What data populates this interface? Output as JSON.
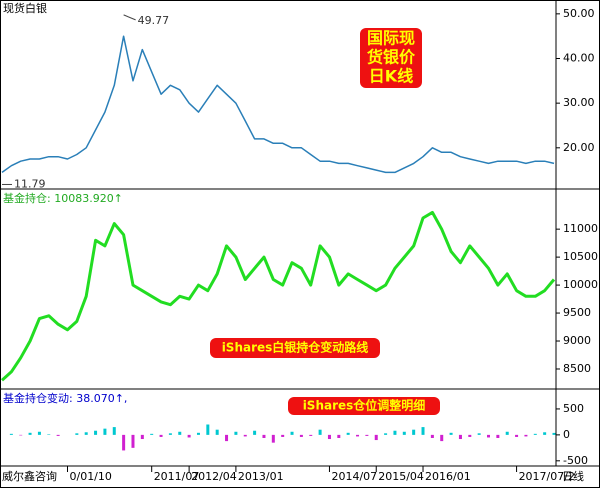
{
  "chart_data": [
    {
      "type": "line",
      "title": "现货白银",
      "color": "#2a7fb8",
      "values": [
        14.5,
        16,
        17,
        17.5,
        17.5,
        18,
        18,
        17.5,
        18.5,
        20,
        24,
        28,
        34,
        45,
        35,
        42,
        37,
        32,
        34,
        33,
        30,
        28,
        31,
        34,
        32,
        30,
        26,
        22,
        22,
        21,
        21,
        20,
        20,
        18.5,
        17,
        17,
        16.5,
        16.5,
        16,
        15.5,
        15,
        14.5,
        14.5,
        15.5,
        16.5,
        18,
        20,
        19,
        19,
        18,
        17.5,
        17,
        16.5,
        17,
        17,
        17,
        16.5,
        17,
        17,
        16.5
      ],
      "high": 49.77,
      "low": 11.79,
      "ylim": [
        11,
        53.1
      ],
      "yticks": [
        {
          "value": 50,
          "label": "50.00"
        },
        {
          "value": 40,
          "label": "40.00"
        },
        {
          "value": 30,
          "label": "30.00"
        },
        {
          "value": 20,
          "label": "20.00"
        }
      ],
      "note": [
        "国际现",
        "货银价",
        "日K线"
      ]
    },
    {
      "type": "line",
      "title": "基金持仓: 10083.920↑",
      "color": "#22dd22",
      "values": [
        8300,
        8450,
        8700,
        9000,
        9400,
        9450,
        9300,
        9200,
        9350,
        9800,
        10800,
        10700,
        11100,
        10900,
        10000,
        9900,
        9800,
        9700,
        9650,
        9800,
        9750,
        10000,
        9900,
        10200,
        10700,
        10500,
        10100,
        10300,
        10500,
        10100,
        10000,
        10400,
        10300,
        10000,
        10700,
        10500,
        10000,
        10200,
        10100,
        10000,
        9900,
        10000,
        10300,
        10500,
        10700,
        11200,
        11300,
        11000,
        10600,
        10400,
        10700,
        10500,
        10300,
        10000,
        10200,
        9900,
        9800,
        9800,
        9900,
        10100
      ],
      "ylim": [
        8160,
        11700
      ],
      "yticks": [
        8500,
        9000,
        9500,
        10000,
        10500,
        11000
      ],
      "note": "iShares白银持仓变动路线"
    },
    {
      "type": "bar",
      "title": "基金持仓变动: 38.070↑,",
      "up_color": "#00c8d0",
      "down_color": "#d020d0",
      "values": [
        0,
        20,
        -10,
        40,
        60,
        10,
        -20,
        0,
        30,
        50,
        80,
        120,
        150,
        -300,
        -250,
        -80,
        20,
        -40,
        30,
        60,
        -50,
        40,
        200,
        100,
        -120,
        60,
        -30,
        80,
        -60,
        -150,
        -40,
        60,
        -40,
        -20,
        100,
        -80,
        -60,
        40,
        -30,
        -20,
        -100,
        30,
        80,
        60,
        100,
        150,
        -60,
        -120,
        40,
        -80,
        -40,
        30,
        -50,
        -60,
        60,
        -40,
        -30,
        20,
        50,
        38.07
      ],
      "ylim": [
        -600,
        865
      ],
      "yticks": [
        500,
        0,
        -500
      ],
      "note": "iShares仓位调整明细",
      "categories": [
        null,
        null,
        null,
        null,
        null,
        null,
        null,
        "0/01/10",
        null,
        null,
        null,
        null,
        null,
        null,
        null,
        null,
        "2011/07",
        null,
        null,
        null,
        "2012/04",
        null,
        null,
        null,
        null,
        "2013/01",
        null,
        null,
        null,
        null,
        null,
        null,
        null,
        null,
        null,
        "2014/07",
        null,
        null,
        null,
        null,
        "2015/04",
        null,
        null,
        null,
        null,
        "2016/01",
        null,
        null,
        null,
        null,
        null,
        null,
        null,
        null,
        null,
        "2017/07/2",
        null,
        null,
        null,
        null
      ],
      "period_label": "日线",
      "source": "威尔鑫咨询"
    }
  ]
}
